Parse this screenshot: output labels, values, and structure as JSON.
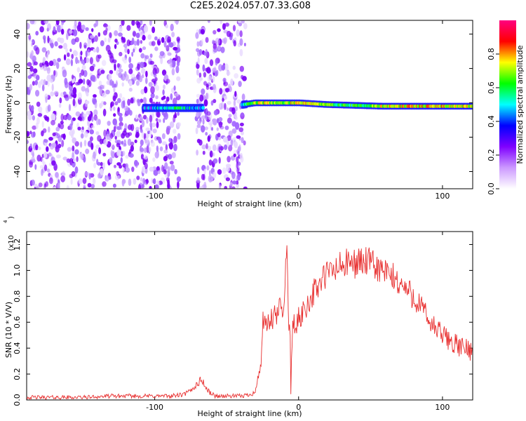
{
  "title": "C2E5.2024.057.07.33.G08",
  "chart_data": [
    {
      "type": "heatmap",
      "xlabel": "Height of straight line (km)",
      "ylabel": "Frequency (Hz)",
      "xlim": [
        -189,
        121
      ],
      "ylim": [
        -50,
        48
      ],
      "xticks": [
        -100,
        0,
        100
      ],
      "yticks": [
        -40,
        -20,
        0,
        20,
        40
      ],
      "colorbar": {
        "label": "Normalized spectral amplitude",
        "range": [
          0,
          1
        ],
        "ticks": [
          "0.0",
          "0.2",
          "0.4",
          "0.6",
          "0.8"
        ],
        "colors": [
          "#ffffff",
          "#cc99ff",
          "#7f00ff",
          "#0000ff",
          "#00ffff",
          "#00ff00",
          "#ffff00",
          "#ff0000",
          "#ff0080"
        ]
      },
      "noise_regions": [
        {
          "x": [
            -189,
            -83
          ],
          "frequency": [
            -50,
            48
          ],
          "amplitude": 0.1
        },
        {
          "x": [
            -71,
            -37
          ],
          "frequency": [
            -50,
            48
          ],
          "amplitude": 0.1
        }
      ],
      "signal_band": {
        "x": [
          -108,
          -100,
          -92,
          -84,
          -76,
          -68,
          -38,
          -30,
          -20,
          -10,
          0,
          10,
          20,
          40,
          60,
          80,
          100,
          121
        ],
        "frequency": [
          -3,
          -3,
          -3,
          -3,
          -3,
          -3,
          -1,
          0,
          0,
          0,
          0,
          -0.5,
          -1,
          -1.5,
          -2,
          -2,
          -2,
          -2
        ],
        "amplitude": [
          0.3,
          0.25,
          0.4,
          0.45,
          0.35,
          0.2,
          0.4,
          0.7,
          0.75,
          0.6,
          0.85,
          0.8,
          0.6,
          0.5,
          0.75,
          0.8,
          0.8,
          0.7
        ]
      }
    },
    {
      "type": "line",
      "xlabel": "Height of straight line (km)",
      "ylabel": "SNR (10 * V/V)",
      "yscale_label": "(x10",
      "yscale_exponent": "4",
      "xlim": [
        -189,
        121
      ],
      "ylim": [
        0,
        1.3
      ],
      "xticks": [
        -100,
        0,
        100
      ],
      "yticks": [
        0.0,
        0.2,
        0.4,
        0.6,
        0.8,
        1.0,
        1.2
      ],
      "color": "#e83030",
      "series": [
        {
          "x": [
            -189,
            -170,
            -150,
            -130,
            -110,
            -90,
            -80,
            -75,
            -70,
            -67,
            -65,
            -62,
            -58,
            -50,
            -40,
            -35,
            -30,
            -26,
            -25,
            -24,
            -20,
            -15,
            -12,
            -10,
            -9,
            -8,
            -7,
            -6,
            -5,
            -4,
            -3,
            -2,
            0,
            5,
            10,
            15,
            20,
            25,
            30,
            35,
            40,
            45,
            50,
            55,
            60,
            65,
            70,
            75,
            80,
            85,
            90,
            95,
            100,
            105,
            110,
            115,
            121
          ],
          "y": [
            0.02,
            0.02,
            0.02,
            0.03,
            0.03,
            0.03,
            0.04,
            0.07,
            0.13,
            0.16,
            0.1,
            0.06,
            0.03,
            0.03,
            0.03,
            0.04,
            0.06,
            0.3,
            0.6,
            0.55,
            0.6,
            0.65,
            0.75,
            0.7,
            1.0,
            1.28,
            0.6,
            0.5,
            0.3,
            0.55,
            0.6,
            0.55,
            0.62,
            0.72,
            0.82,
            0.9,
            0.98,
            1.0,
            1.04,
            1.05,
            1.06,
            1.07,
            1.05,
            1.02,
            0.98,
            0.95,
            0.9,
            0.85,
            0.8,
            0.72,
            0.62,
            0.55,
            0.5,
            0.46,
            0.42,
            0.4,
            0.38
          ]
        }
      ]
    }
  ]
}
